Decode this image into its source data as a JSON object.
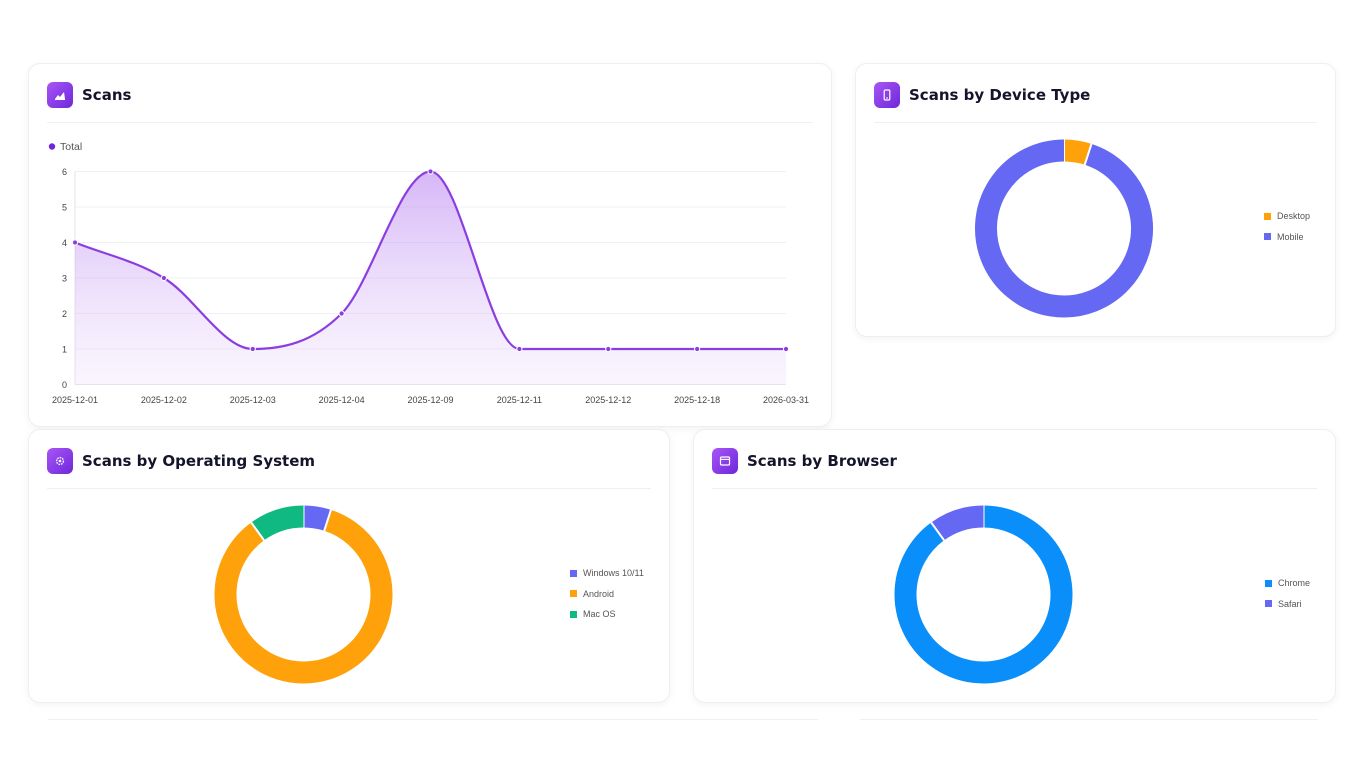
{
  "cards": {
    "scans": {
      "title": "Scans",
      "icon": "chart-area-icon",
      "legend_label": "Total"
    },
    "device": {
      "title": "Scans by Device Type",
      "icon": "mobile-device-icon"
    },
    "os": {
      "title": "Scans by Operating System",
      "icon": "cog-icon"
    },
    "browser": {
      "title": "Scans by Browser",
      "icon": "browser-window-icon"
    }
  },
  "colors": {
    "accent": "#9333ea",
    "line": "#8b3ee0",
    "orange": "#ffa10a",
    "indigo": "#6568f2",
    "green": "#10b981",
    "blue": "#0a8ffa"
  },
  "chart_data": [
    {
      "type": "area",
      "categories": [
        "2025-12-01",
        "2025-12-02",
        "2025-12-03",
        "2025-12-04",
        "2025-12-09",
        "2025-12-11",
        "2025-12-12",
        "2025-12-18",
        "2026-03-31"
      ],
      "series": [
        {
          "name": "Total",
          "values": [
            4,
            3,
            1,
            2,
            6,
            1,
            1,
            1,
            1
          ]
        }
      ],
      "ylim": [
        0,
        6
      ],
      "yticks": [
        "0",
        "1",
        "2",
        "3",
        "4",
        "5",
        "6"
      ],
      "grid": true,
      "legend": "top-left"
    },
    {
      "type": "pie",
      "labels": [
        "Desktop",
        "Mobile"
      ],
      "values": [
        1,
        19
      ],
      "colors": [
        "#ffa10a",
        "#6568f2"
      ],
      "legend": "right"
    },
    {
      "type": "pie",
      "labels": [
        "Windows 10/11",
        "Android",
        "Mac OS"
      ],
      "values": [
        1,
        17,
        2
      ],
      "colors": [
        "#6568f2",
        "#ffa10a",
        "#10b981"
      ],
      "legend": "right"
    },
    {
      "type": "pie",
      "labels": [
        "Chrome",
        "Safari"
      ],
      "values": [
        18,
        2
      ],
      "colors": [
        "#0a8ffa",
        "#6568f2"
      ],
      "legend": "right"
    }
  ]
}
